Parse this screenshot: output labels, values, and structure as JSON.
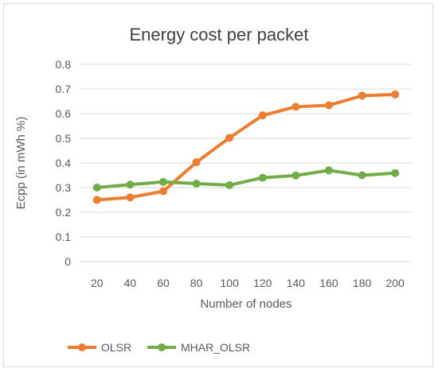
{
  "chart_data": {
    "type": "line",
    "title": "Energy cost per packet",
    "xlabel": "Number of nodes",
    "ylabel": "Ecpp (in mWh %)",
    "categories": [
      "20",
      "40",
      "60",
      "80",
      "100",
      "120",
      "140",
      "160",
      "180",
      "200"
    ],
    "ylim": [
      0,
      0.8
    ],
    "yticks": [
      "0",
      "0.1",
      "0.2",
      "0.3",
      "0.4",
      "0.5",
      "0.6",
      "0.7",
      "0.8"
    ],
    "grid": true,
    "legend_position": "bottom-left",
    "series": [
      {
        "name": "OLSR",
        "color": "#ed7d31",
        "values": [
          0.25,
          0.26,
          0.285,
          0.403,
          0.502,
          0.593,
          0.628,
          0.634,
          0.673,
          0.678
        ]
      },
      {
        "name": "MHAR_OLSR",
        "color": "#70ad47",
        "values": [
          0.3,
          0.312,
          0.323,
          0.316,
          0.31,
          0.34,
          0.349,
          0.37,
          0.35,
          0.359
        ]
      }
    ]
  }
}
